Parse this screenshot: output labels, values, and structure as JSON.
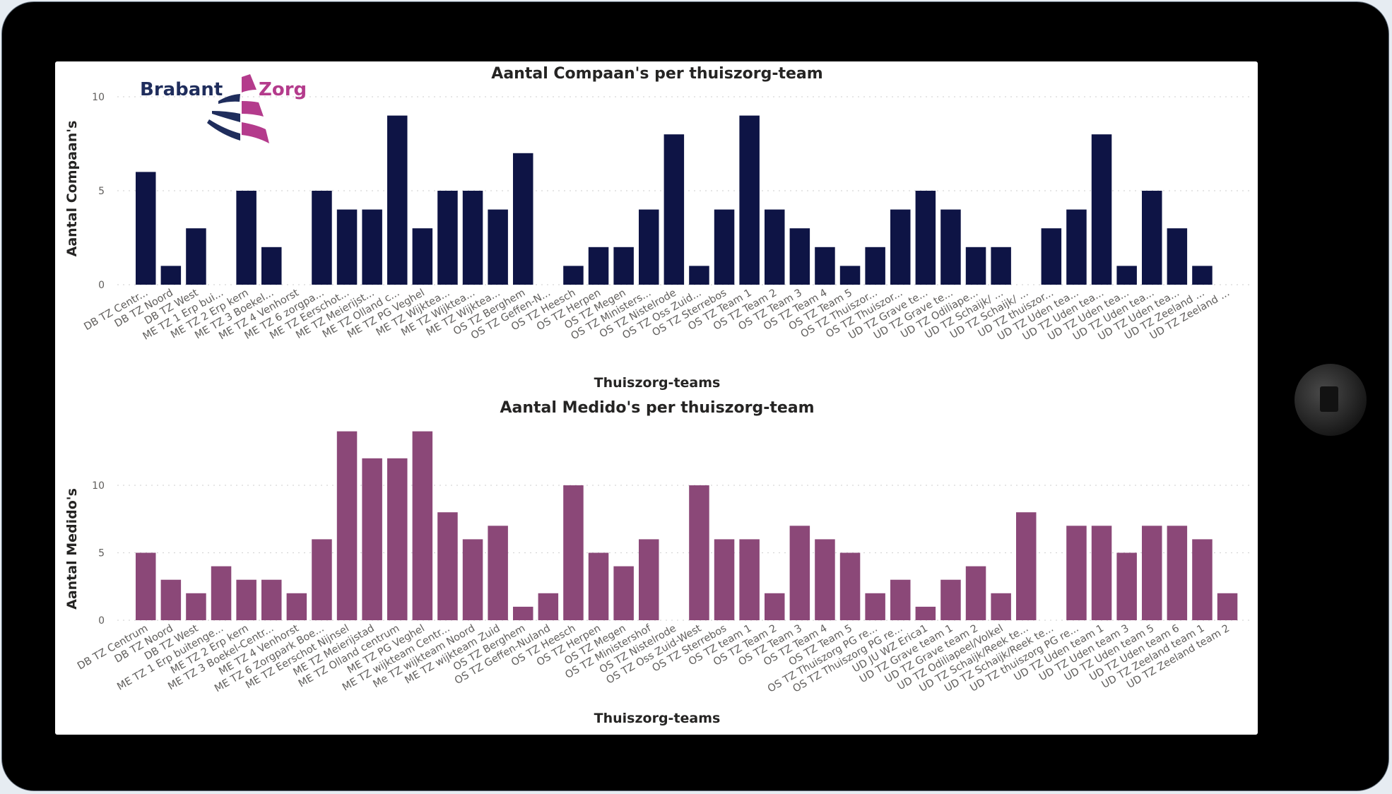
{
  "logo": {
    "left_text": "Brabant",
    "right_text": "Zorg",
    "navy": "#1f2d5c",
    "magenta": "#b43b8c"
  },
  "chart_data": [
    {
      "type": "bar",
      "title": "Aantal Compaan's per thuiszorg-team",
      "xlabel": "Thuiszorg-teams",
      "ylabel": "Aantal Compaan's",
      "ylim": [
        0,
        10.6
      ],
      "yticks": [
        "0",
        "5",
        "10"
      ],
      "ytick_values": [
        0,
        5,
        10
      ],
      "grid": true,
      "color": "#0e1445",
      "categories": [
        "DB TZ Centr...",
        "DB TZ Noord",
        "DB TZ West",
        "ME TZ 1 Erp bui...",
        "ME TZ 2 Erp kern",
        "ME TZ 3 Boekel...",
        "ME TZ 4 Venhorst",
        "ME TZ 6 zorgpa...",
        "ME TZ Eerschot...",
        "ME TZ Meierijst...",
        "ME TZ Olland c...",
        "ME TZ PG Veghel",
        "ME TZ Wijktea...",
        "ME TZ Wijktea...",
        "ME TZ Wijktea...",
        "OS TZ Berghem",
        "OS TZ Geffen-N...",
        "OS TZ Heesch",
        "OS TZ Herpen",
        "OS TZ Megen",
        "OS TZ Ministers...",
        "OS TZ Nistelrode",
        "OS TZ Oss Zuid...",
        "OS TZ Sterrebos",
        "OS TZ Team 1",
        "OS TZ Team 2",
        "OS TZ Team 3",
        "OS TZ Team 4",
        "OS TZ Team 5",
        "OS TZ Thuiszor...",
        "OS TZ Thuiszor...",
        "UD TZ Grave te...",
        "UD TZ Grave te...",
        "UD TZ Odiliape...",
        "UD TZ Schaijk/ ...",
        "UD TZ Schaijk/ ...",
        "UD TZ thuiszor...",
        "UD TZ Uden tea...",
        "UD TZ Uden tea...",
        "UD TZ Uden tea...",
        "UD TZ Uden tea...",
        "UD TZ Uden tea...",
        "UD TZ Zeeland ...",
        "UD TZ Zeeland ..."
      ],
      "values": [
        6,
        1,
        3,
        0,
        5,
        2,
        0,
        5,
        4,
        4,
        9,
        3,
        5,
        5,
        4,
        7,
        0,
        1,
        2,
        2,
        4,
        8,
        1,
        4,
        9,
        4,
        3,
        2,
        1,
        2,
        4,
        5,
        4,
        2,
        2,
        0,
        3,
        4,
        8,
        1,
        5,
        3,
        1,
        0
      ]
    },
    {
      "type": "bar",
      "title": "Aantal Medido's per thuiszorg-team",
      "xlabel": "Thuiszorg-teams",
      "ylabel": "Aantal Medido's",
      "ylim": [
        0,
        15
      ],
      "yticks": [
        "0",
        "5",
        "10"
      ],
      "ytick_values": [
        0,
        5,
        10
      ],
      "grid": true,
      "color": "#8b4878",
      "categories": [
        "DB TZ Centrum",
        "DB TZ Noord",
        "DB TZ West",
        "ME TZ 1 Erp buitenge...",
        "ME TZ 2 Erp kern",
        "ME TZ 3 Boekel-Centr...",
        "ME TZ 4 Venhorst",
        "ME TZ 6 Zorgpark Boe...",
        "ME TZ Eerschot Nijnsel",
        "ME TZ Meierijstad",
        "ME TZ Olland centrum",
        "ME TZ PG Veghel",
        "ME TZ wijkteam Centr...",
        "Me TZ wijkteam Noord",
        "ME TZ wijkteam Zuid",
        "OS TZ Berghem",
        "OS TZ Geffen-Nuland",
        "OS TZ Heesch",
        "OS TZ Herpen",
        "OS TZ Megen",
        "OS TZ Ministershof",
        "OS TZ Nistelrode",
        "OS TZ Oss Zuid-West",
        "OS TZ Sterrebos",
        "OS TZ team 1",
        "OS TZ Team 2",
        "OS TZ Team 3",
        "OS TZ Team 4",
        "OS TZ Team 5",
        "OS TZ Thuiszorg PG re...",
        "OS TZ Thuiszorg PG re...",
        "UD JU WZ Erica1",
        "UD TZ Grave team 1",
        "UD TZ Grave team 2",
        "UD TZ Odiliapeel/Volkel",
        "UD TZ Schaijk/Reek te...",
        "UD TZ Schaijk/Reek te...",
        "UD TZ thuiszorg PG re...",
        "UD TZ Uden team 1",
        "UD TZ Uden team 3",
        "UD TZ Uden team 5",
        "UD TZ Uden team 6",
        "UD TZ Zeeland team 1",
        "UD TZ Zeeland team 2"
      ],
      "values": [
        5,
        3,
        2,
        4,
        3,
        3,
        2,
        6,
        14,
        12,
        12,
        14,
        8,
        6,
        7,
        1,
        2,
        10,
        5,
        4,
        6,
        0,
        10,
        6,
        6,
        2,
        7,
        6,
        5,
        2,
        3,
        1,
        3,
        4,
        2,
        8,
        0,
        7,
        7,
        5,
        7,
        7,
        6,
        2
      ]
    }
  ]
}
